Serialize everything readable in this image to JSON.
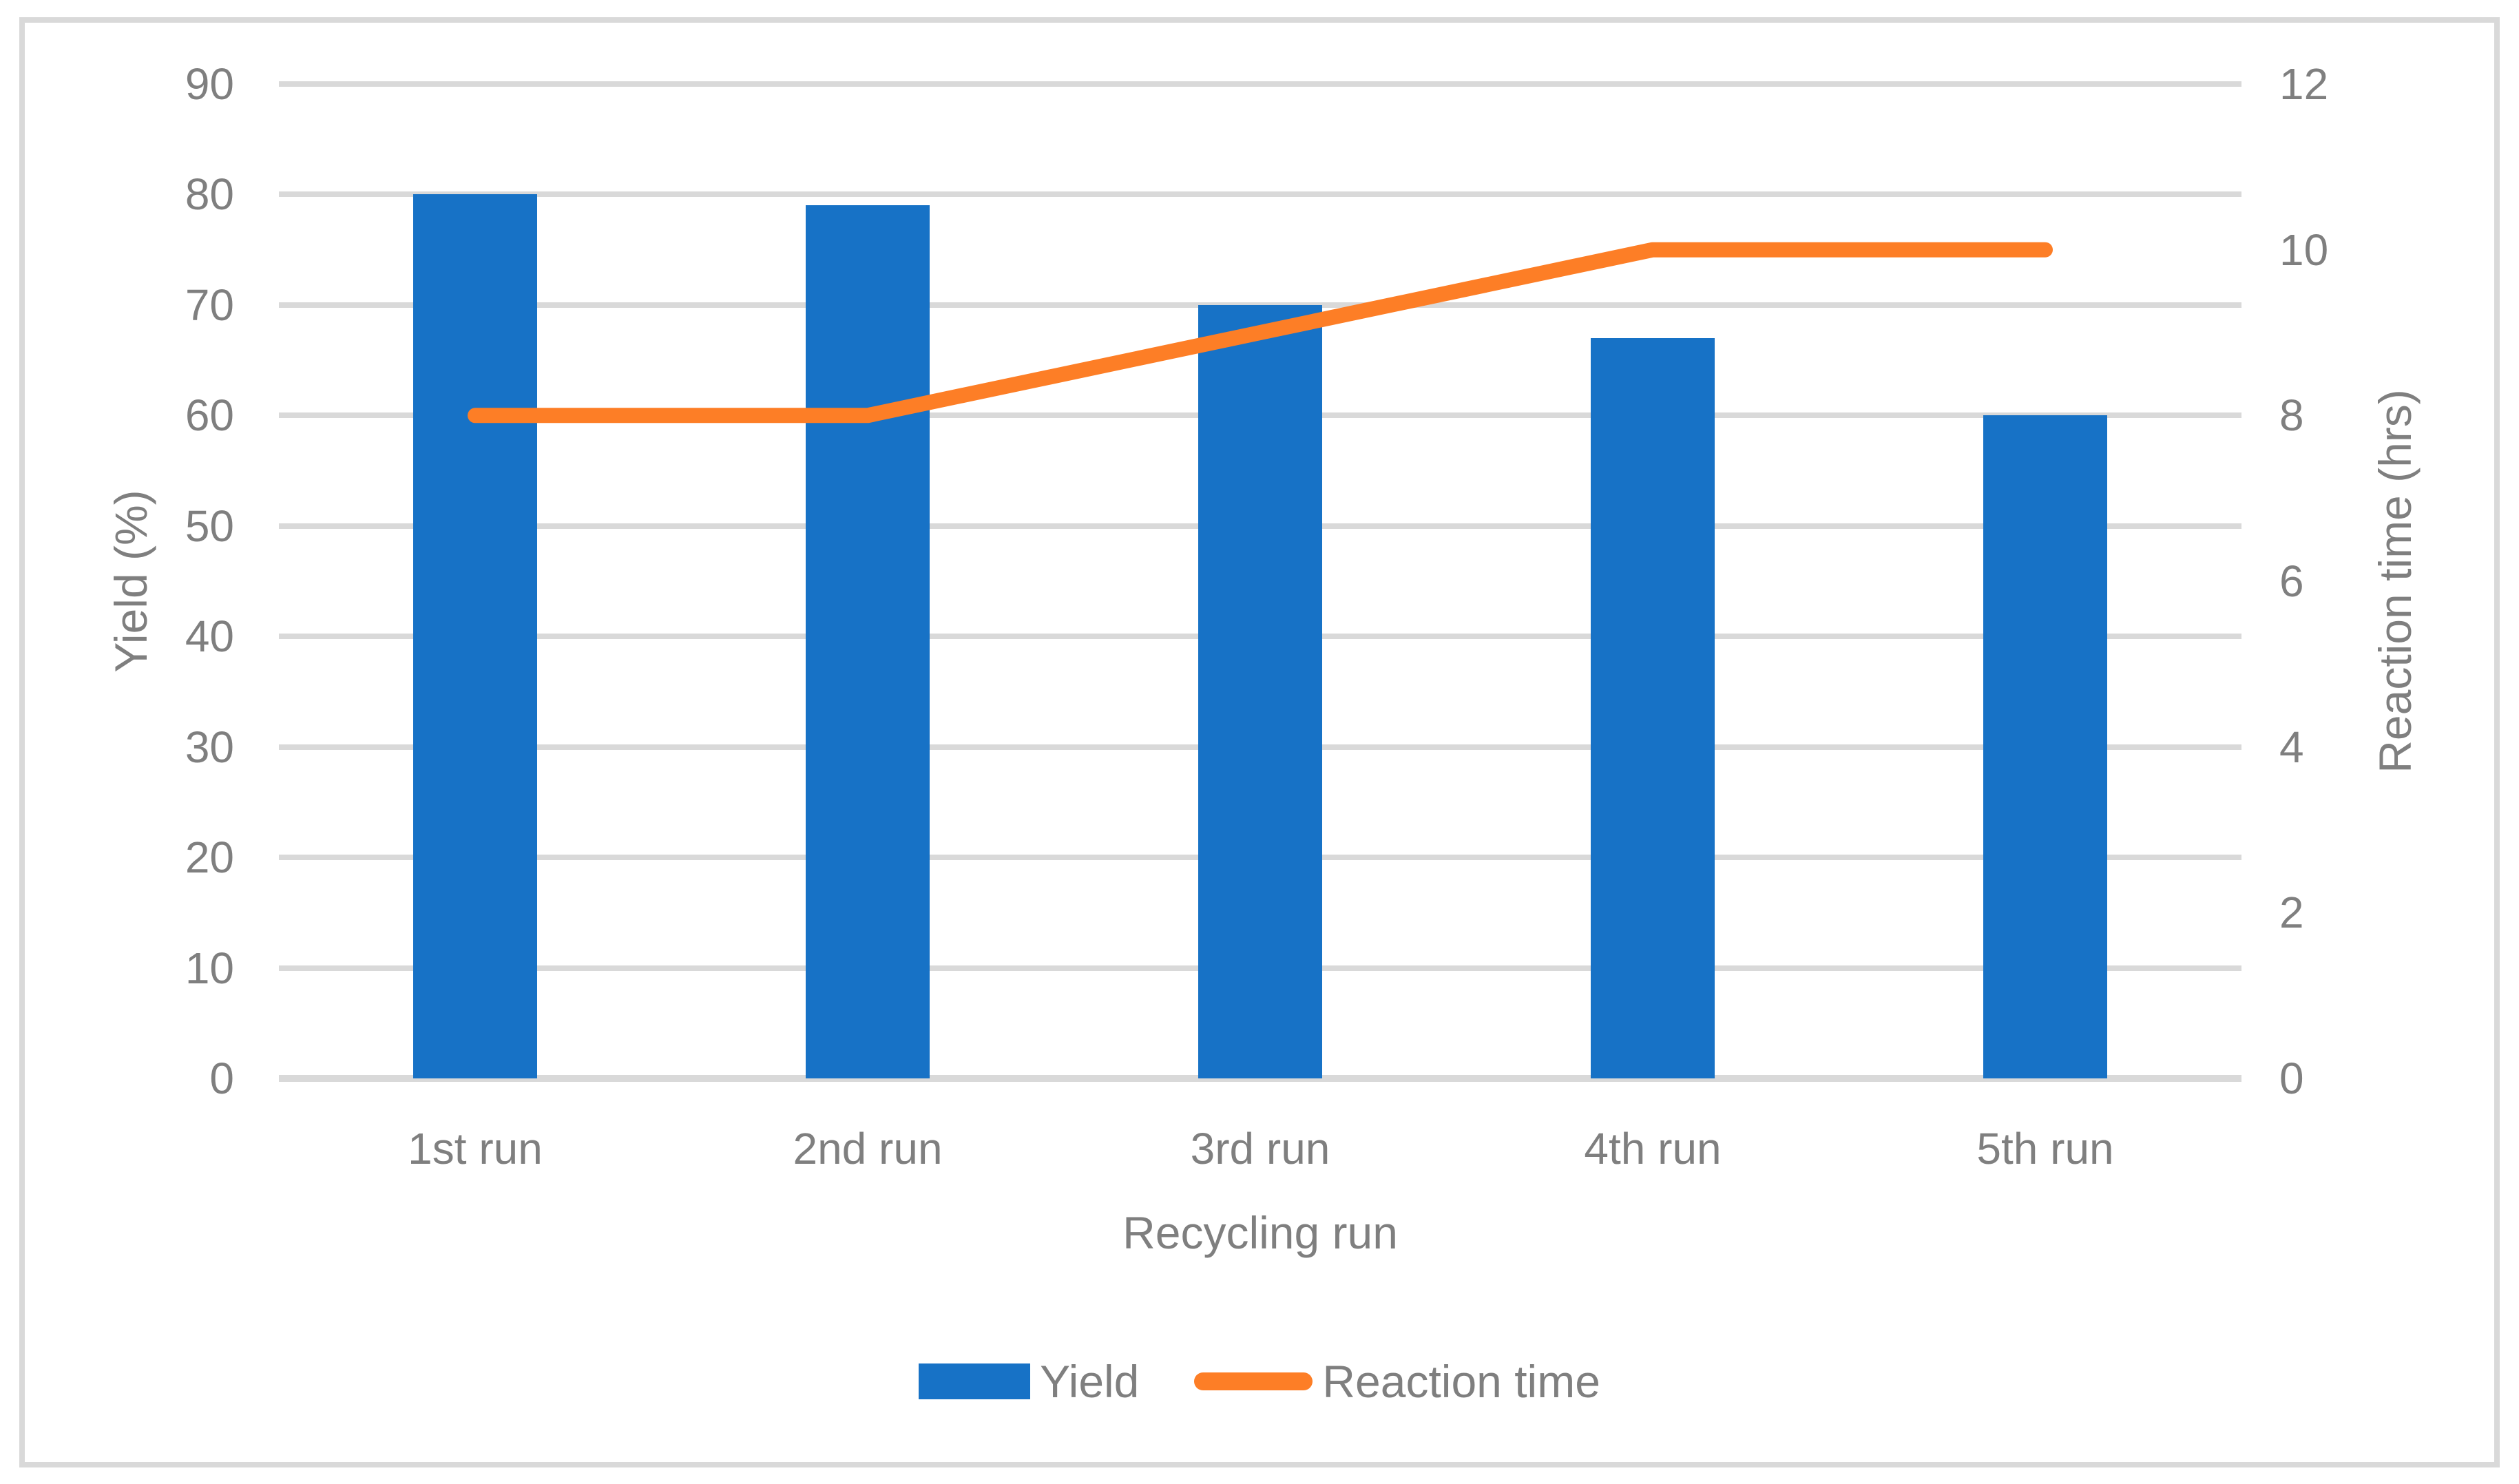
{
  "chart_data": {
    "type": "combo",
    "categories": [
      "1st run",
      "2nd run",
      "3rd run",
      "4th run",
      "5th run"
    ],
    "series": [
      {
        "name": "Yield",
        "type": "bar",
        "axis": "left",
        "values": [
          80,
          79,
          70,
          67,
          60
        ],
        "color": "#1772c6"
      },
      {
        "name": "Reaction time",
        "type": "line",
        "axis": "right",
        "values": [
          8,
          8,
          9,
          10,
          10
        ],
        "color": "#fd7e26"
      }
    ],
    "x_axis": {
      "title": "Recycling run"
    },
    "left_axis": {
      "title": "Yield (%)",
      "min": 0,
      "max": 90,
      "tick_step": 10,
      "tick_labels": [
        "0",
        "10",
        "20",
        "30",
        "40",
        "50",
        "60",
        "70",
        "80",
        "90"
      ]
    },
    "right_axis": {
      "title": "Reaction time (hrs)",
      "min": 0,
      "max": 12,
      "tick_step": 2,
      "tick_labels": [
        "0",
        "2",
        "4",
        "6",
        "8",
        "10",
        "12"
      ]
    },
    "legend": {
      "position": "bottom",
      "items": [
        {
          "label": "Yield",
          "swatch": "bar",
          "color": "#1772c6"
        },
        {
          "label": "Reaction time",
          "swatch": "line",
          "color": "#fd7e26"
        }
      ]
    },
    "grid": {
      "visible": true,
      "color": "#d9d9d9"
    },
    "style": {
      "text_color": "#7f7f7f",
      "frame_color": "#d9d9d9",
      "background": "#ffffff",
      "bar_color": "#1772c6",
      "line_color": "#fd7e26"
    }
  }
}
